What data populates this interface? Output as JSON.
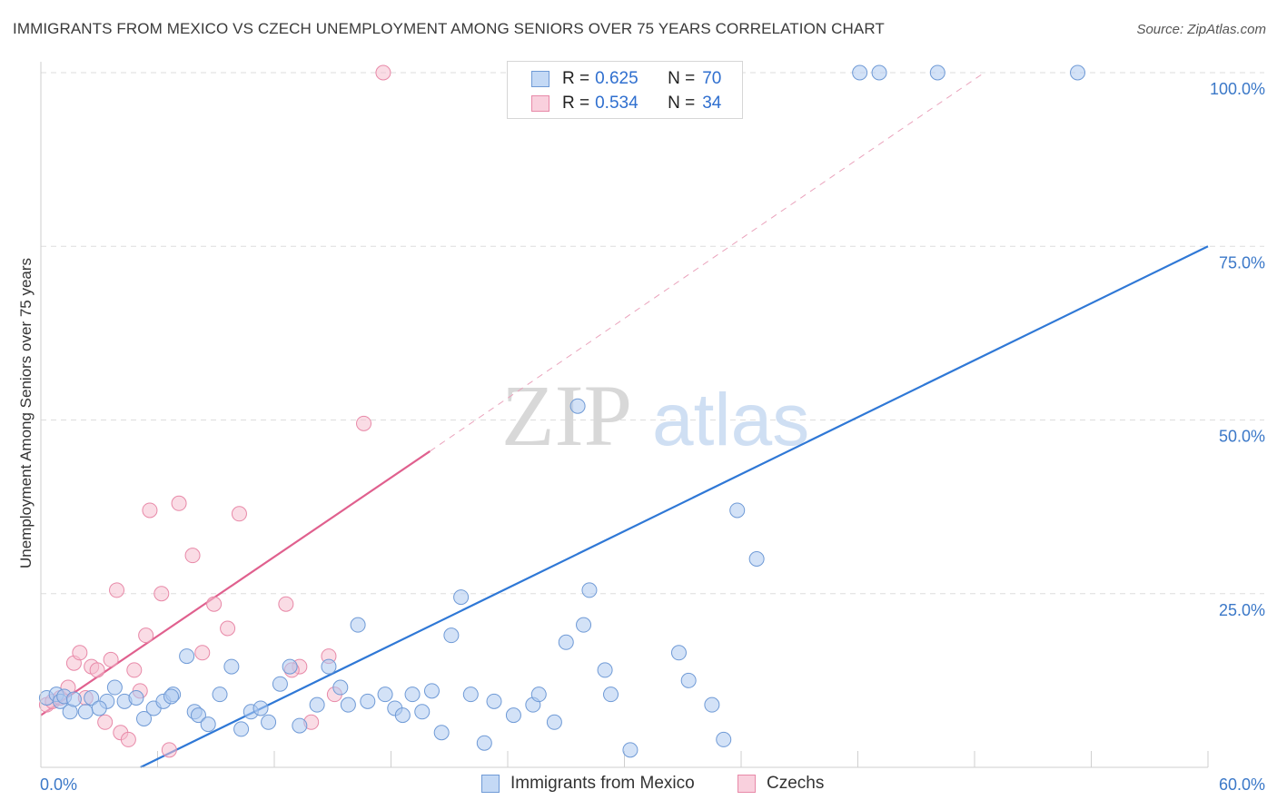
{
  "header": {
    "title": "IMMIGRANTS FROM MEXICO VS CZECH UNEMPLOYMENT AMONG SENIORS OVER 75 YEARS CORRELATION CHART",
    "source": "Source: ZipAtlas.com"
  },
  "watermark": {
    "zip": "ZIP",
    "atlas": "atlas"
  },
  "legend": {
    "rows": [
      {
        "r_label": "R =",
        "r_value": "0.625",
        "n_label": "N =",
        "n_value": "70"
      },
      {
        "r_label": "R =",
        "r_value": "0.534",
        "n_label": "N =",
        "n_value": "34"
      }
    ]
  },
  "bottom_legend": {
    "mexico": "Immigrants from Mexico",
    "czechs": "Czechs"
  },
  "colors": {
    "mexico_fill": "#aecbf0",
    "mexico_stroke": "#6f9ad6",
    "mexico_line": "#2f78d6",
    "czech_fill": "#f6bfd0",
    "czech_stroke": "#e889a8",
    "czech_line": "#e0608e",
    "grid": "#dddddd",
    "axis_text": "#3b78c8"
  },
  "chart_data": {
    "type": "scatter",
    "title": "IMMIGRANTS FROM MEXICO VS CZECH UNEMPLOYMENT AMONG SENIORS OVER 75 YEARS CORRELATION CHART",
    "xlabel": "",
    "ylabel": "Unemployment Among Seniors over 75 years",
    "xlim": [
      0,
      60
    ],
    "ylim": [
      0,
      100
    ],
    "x_tick_labels": [
      "0.0%",
      "60.0%"
    ],
    "y_ticks": [
      25,
      50,
      75,
      100
    ],
    "y_tick_labels": [
      "25.0%",
      "50.0%",
      "75.0%",
      "100.0%"
    ],
    "series": [
      {
        "name": "Immigrants from Mexico",
        "r": 0.625,
        "n": 70,
        "trend": {
          "x": [
            0,
            60
          ],
          "y": [
            -7.0,
            75.0
          ],
          "style": "solid"
        },
        "points": [
          [
            0.3,
            10.0
          ],
          [
            0.8,
            10.5
          ],
          [
            1.0,
            9.5
          ],
          [
            1.2,
            10.2
          ],
          [
            1.5,
            8.0
          ],
          [
            1.7,
            9.8
          ],
          [
            2.3,
            8.0
          ],
          [
            2.6,
            10.0
          ],
          [
            3.4,
            9.5
          ],
          [
            3.8,
            11.5
          ],
          [
            4.3,
            9.5
          ],
          [
            4.9,
            10.0
          ],
          [
            5.3,
            7.0
          ],
          [
            5.8,
            8.5
          ],
          [
            6.3,
            9.5
          ],
          [
            6.8,
            10.5
          ],
          [
            7.5,
            16.0
          ],
          [
            7.9,
            8.0
          ],
          [
            8.1,
            7.5
          ],
          [
            8.6,
            6.2
          ],
          [
            9.2,
            10.5
          ],
          [
            9.8,
            14.5
          ],
          [
            10.3,
            5.5
          ],
          [
            10.8,
            8.0
          ],
          [
            11.3,
            8.5
          ],
          [
            11.7,
            6.5
          ],
          [
            12.3,
            12.0
          ],
          [
            12.8,
            14.5
          ],
          [
            13.3,
            6.0
          ],
          [
            14.2,
            9.0
          ],
          [
            14.8,
            14.5
          ],
          [
            15.4,
            11.5
          ],
          [
            15.8,
            9.0
          ],
          [
            16.3,
            20.5
          ],
          [
            16.8,
            9.5
          ],
          [
            17.7,
            10.5
          ],
          [
            18.2,
            8.5
          ],
          [
            18.6,
            7.5
          ],
          [
            19.1,
            10.5
          ],
          [
            19.6,
            8.0
          ],
          [
            20.1,
            11.0
          ],
          [
            20.6,
            5.0
          ],
          [
            21.1,
            19.0
          ],
          [
            21.6,
            24.5
          ],
          [
            22.1,
            10.5
          ],
          [
            22.8,
            3.5
          ],
          [
            23.3,
            9.5
          ],
          [
            24.3,
            7.5
          ],
          [
            25.3,
            9.0
          ],
          [
            25.6,
            10.5
          ],
          [
            26.4,
            6.5
          ],
          [
            27.0,
            18.0
          ],
          [
            27.6,
            52.0
          ],
          [
            27.9,
            20.5
          ],
          [
            28.2,
            25.5
          ],
          [
            29.0,
            14.0
          ],
          [
            29.3,
            10.5
          ],
          [
            30.3,
            2.5
          ],
          [
            32.8,
            16.5
          ],
          [
            33.3,
            12.5
          ],
          [
            34.5,
            9.0
          ],
          [
            35.1,
            4.0
          ],
          [
            35.8,
            37.0
          ],
          [
            36.8,
            30.0
          ],
          [
            42.1,
            100.0
          ],
          [
            43.1,
            100.0
          ],
          [
            46.1,
            100.0
          ],
          [
            53.3,
            100.0
          ],
          [
            3.0,
            8.5
          ],
          [
            6.7,
            10.2
          ]
        ]
      },
      {
        "name": "Czechs",
        "r": 0.534,
        "n": 34,
        "trend": {
          "x": [
            0,
            20
          ],
          "y": [
            7.5,
            45.5
          ],
          "style": "solid",
          "extension": {
            "x": [
              20,
              48.5
            ],
            "y": [
              45.5,
              100.0
            ],
            "style": "dashed"
          }
        },
        "points": [
          [
            0.3,
            9.0
          ],
          [
            0.6,
            9.5
          ],
          [
            1.0,
            10.0
          ],
          [
            1.4,
            11.5
          ],
          [
            1.7,
            15.0
          ],
          [
            2.0,
            16.5
          ],
          [
            2.3,
            10.0
          ],
          [
            2.6,
            14.5
          ],
          [
            2.9,
            14.0
          ],
          [
            3.3,
            6.5
          ],
          [
            3.6,
            15.5
          ],
          [
            3.9,
            25.5
          ],
          [
            4.1,
            5.0
          ],
          [
            4.5,
            4.0
          ],
          [
            4.8,
            14.0
          ],
          [
            5.1,
            11.0
          ],
          [
            5.4,
            19.0
          ],
          [
            5.6,
            37.0
          ],
          [
            6.2,
            25.0
          ],
          [
            6.6,
            2.5
          ],
          [
            7.1,
            38.0
          ],
          [
            7.8,
            30.5
          ],
          [
            8.3,
            16.5
          ],
          [
            8.9,
            23.5
          ],
          [
            9.6,
            20.0
          ],
          [
            10.2,
            36.5
          ],
          [
            12.6,
            23.5
          ],
          [
            13.3,
            14.5
          ],
          [
            13.9,
            6.5
          ],
          [
            14.8,
            16.0
          ],
          [
            15.1,
            10.5
          ],
          [
            16.6,
            49.5
          ],
          [
            17.6,
            100.0
          ],
          [
            12.9,
            14.0
          ]
        ]
      }
    ]
  }
}
